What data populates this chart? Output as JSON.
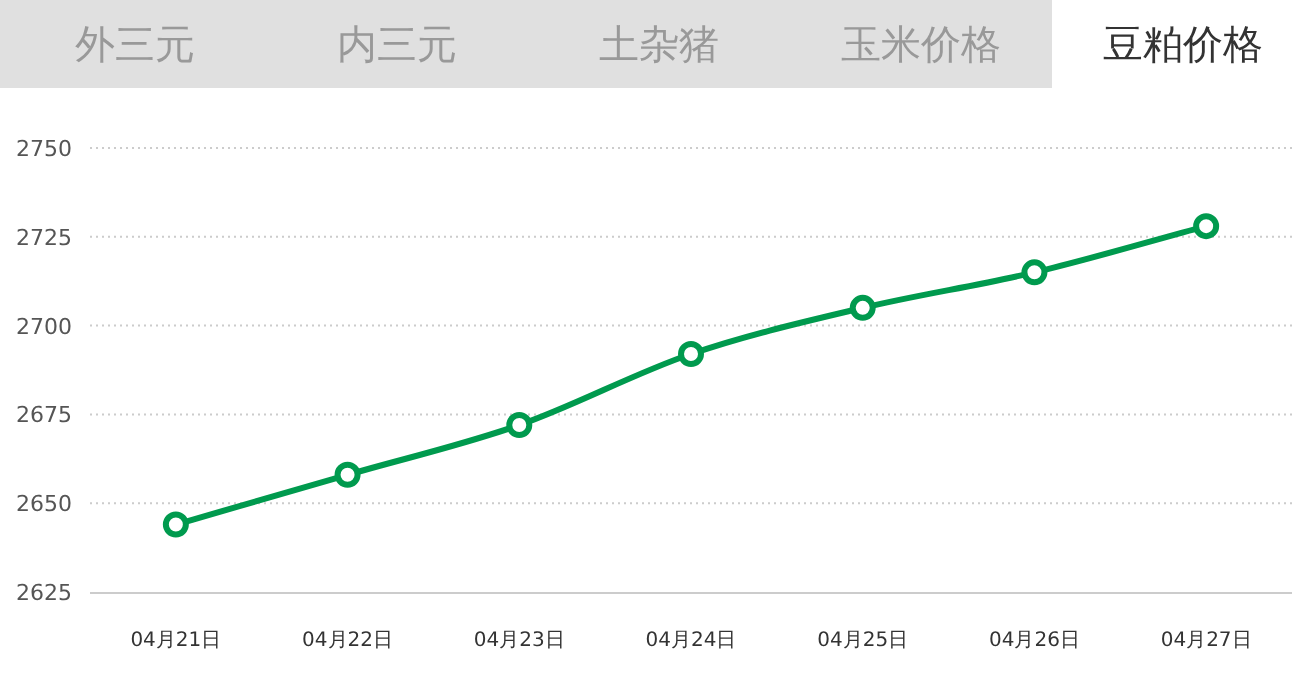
{
  "chart_data": {
    "type": "line",
    "title": "豆粕价格",
    "annotations": [
      "外三元",
      "内三元",
      "土杂猪",
      "玉米价格"
    ],
    "categories": [
      "04月21日",
      "04月22日",
      "04月23日",
      "04月24日",
      "04月25日",
      "04月26日",
      "04月27日"
    ],
    "series": [
      {
        "color": "#009a4e",
        "values": [
          2644,
          2658,
          2672,
          2692,
          2705,
          2715,
          2728
        ]
      }
    ],
    "ylim": [
      2625,
      2750
    ],
    "yticks": [
      2625,
      2650,
      2675,
      2700,
      2725,
      2750
    ],
    "grid": "y",
    "marker": "circle",
    "line_style": "solid"
  }
}
